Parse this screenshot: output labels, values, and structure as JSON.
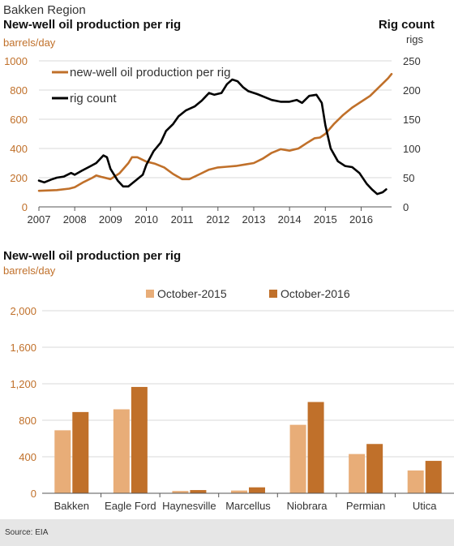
{
  "header": {
    "region": "Bakken Region",
    "top_title": "New-well oil production per rig",
    "top_left_unit": "barrels/day",
    "top_right_heading": "Rig count",
    "top_right_unit": "rigs",
    "bottom_title": "New-well oil production per rig",
    "bottom_unit": "barrels/day"
  },
  "source": "Source: EIA",
  "chart_data": [
    {
      "type": "line",
      "title": "New-well oil production per rig",
      "x_ticks": [
        "2007",
        "2008",
        "2009",
        "2010",
        "2011",
        "2012",
        "2013",
        "2014",
        "2015",
        "2016"
      ],
      "xlim": [
        2007,
        2016.85
      ],
      "y_left": {
        "ticks": [
          "0",
          "200",
          "400",
          "600",
          "800",
          "1000"
        ],
        "lim": [
          0,
          1000
        ],
        "label": "barrels/day"
      },
      "y_right": {
        "ticks": [
          "0",
          "50",
          "100",
          "150",
          "200",
          "250"
        ],
        "lim": [
          0,
          250
        ],
        "label": "rigs"
      },
      "legend": [
        "new-well oil production per rig",
        "rig count"
      ],
      "colors": {
        "production": "#c0702a",
        "rigs": "#000000"
      },
      "series": [
        {
          "name": "new-well oil production per rig",
          "axis": "left",
          "points": [
            [
              2007.0,
              110
            ],
            [
              2007.5,
              115
            ],
            [
              2007.85,
              125
            ],
            [
              2008.0,
              135
            ],
            [
              2008.25,
              170
            ],
            [
              2008.5,
              200
            ],
            [
              2008.6,
              215
            ],
            [
              2008.75,
              205
            ],
            [
              2009.0,
              190
            ],
            [
              2009.25,
              230
            ],
            [
              2009.5,
              300
            ],
            [
              2009.6,
              340
            ],
            [
              2009.75,
              340
            ],
            [
              2010.0,
              310
            ],
            [
              2010.25,
              295
            ],
            [
              2010.5,
              270
            ],
            [
              2010.75,
              225
            ],
            [
              2011.0,
              190
            ],
            [
              2011.2,
              190
            ],
            [
              2011.5,
              225
            ],
            [
              2011.75,
              255
            ],
            [
              2012.0,
              270
            ],
            [
              2012.25,
              275
            ],
            [
              2012.5,
              280
            ],
            [
              2012.75,
              290
            ],
            [
              2013.0,
              300
            ],
            [
              2013.25,
              330
            ],
            [
              2013.5,
              370
            ],
            [
              2013.75,
              395
            ],
            [
              2014.0,
              385
            ],
            [
              2014.25,
              400
            ],
            [
              2014.5,
              440
            ],
            [
              2014.7,
              470
            ],
            [
              2014.85,
              475
            ],
            [
              2015.0,
              500
            ],
            [
              2015.25,
              570
            ],
            [
              2015.5,
              630
            ],
            [
              2015.75,
              680
            ],
            [
              2016.0,
              720
            ],
            [
              2016.25,
              760
            ],
            [
              2016.5,
              820
            ],
            [
              2016.75,
              880
            ],
            [
              2016.85,
              910
            ]
          ]
        },
        {
          "name": "rig count",
          "axis": "right",
          "points": [
            [
              2007.0,
              45
            ],
            [
              2007.15,
              42
            ],
            [
              2007.35,
              47
            ],
            [
              2007.5,
              50
            ],
            [
              2007.7,
              52
            ],
            [
              2007.9,
              58
            ],
            [
              2008.0,
              55
            ],
            [
              2008.2,
              62
            ],
            [
              2008.45,
              70
            ],
            [
              2008.6,
              75
            ],
            [
              2008.8,
              88
            ],
            [
              2008.9,
              85
            ],
            [
              2009.0,
              65
            ],
            [
              2009.2,
              45
            ],
            [
              2009.35,
              35
            ],
            [
              2009.5,
              35
            ],
            [
              2009.7,
              45
            ],
            [
              2009.9,
              55
            ],
            [
              2010.0,
              72
            ],
            [
              2010.2,
              95
            ],
            [
              2010.4,
              110
            ],
            [
              2010.55,
              130
            ],
            [
              2010.75,
              142
            ],
            [
              2010.9,
              155
            ],
            [
              2011.1,
              165
            ],
            [
              2011.35,
              172
            ],
            [
              2011.55,
              182
            ],
            [
              2011.75,
              195
            ],
            [
              2011.9,
              192
            ],
            [
              2012.1,
              195
            ],
            [
              2012.25,
              210
            ],
            [
              2012.4,
              218
            ],
            [
              2012.55,
              215
            ],
            [
              2012.7,
              205
            ],
            [
              2012.85,
              198
            ],
            [
              2013.1,
              193
            ],
            [
              2013.3,
              188
            ],
            [
              2013.5,
              183
            ],
            [
              2013.75,
              180
            ],
            [
              2014.0,
              180
            ],
            [
              2014.2,
              183
            ],
            [
              2014.35,
              178
            ],
            [
              2014.55,
              190
            ],
            [
              2014.75,
              192
            ],
            [
              2014.9,
              178
            ],
            [
              2015.0,
              140
            ],
            [
              2015.15,
              100
            ],
            [
              2015.35,
              78
            ],
            [
              2015.55,
              70
            ],
            [
              2015.75,
              68
            ],
            [
              2015.95,
              58
            ],
            [
              2016.15,
              40
            ],
            [
              2016.3,
              30
            ],
            [
              2016.45,
              22
            ],
            [
              2016.6,
              25
            ],
            [
              2016.7,
              30
            ]
          ]
        }
      ]
    },
    {
      "type": "bar",
      "title": "New-well oil production per rig",
      "ylabel": "barrels/day",
      "ylim": [
        0,
        2000
      ],
      "y_ticks": [
        "0",
        "400",
        "800",
        "1,200",
        "1,600",
        "2,000"
      ],
      "categories": [
        "Bakken",
        "Eagle Ford",
        "Haynesville",
        "Marcellus",
        "Niobrara",
        "Permian",
        "Utica"
      ],
      "series": [
        {
          "name": "October-2015",
          "color": "#e8ad78",
          "values": [
            690,
            920,
            25,
            30,
            750,
            430,
            250
          ]
        },
        {
          "name": "October-2016",
          "color": "#c0702a",
          "values": [
            890,
            1165,
            35,
            65,
            1000,
            540,
            355
          ]
        }
      ],
      "legend_position": "top"
    }
  ]
}
